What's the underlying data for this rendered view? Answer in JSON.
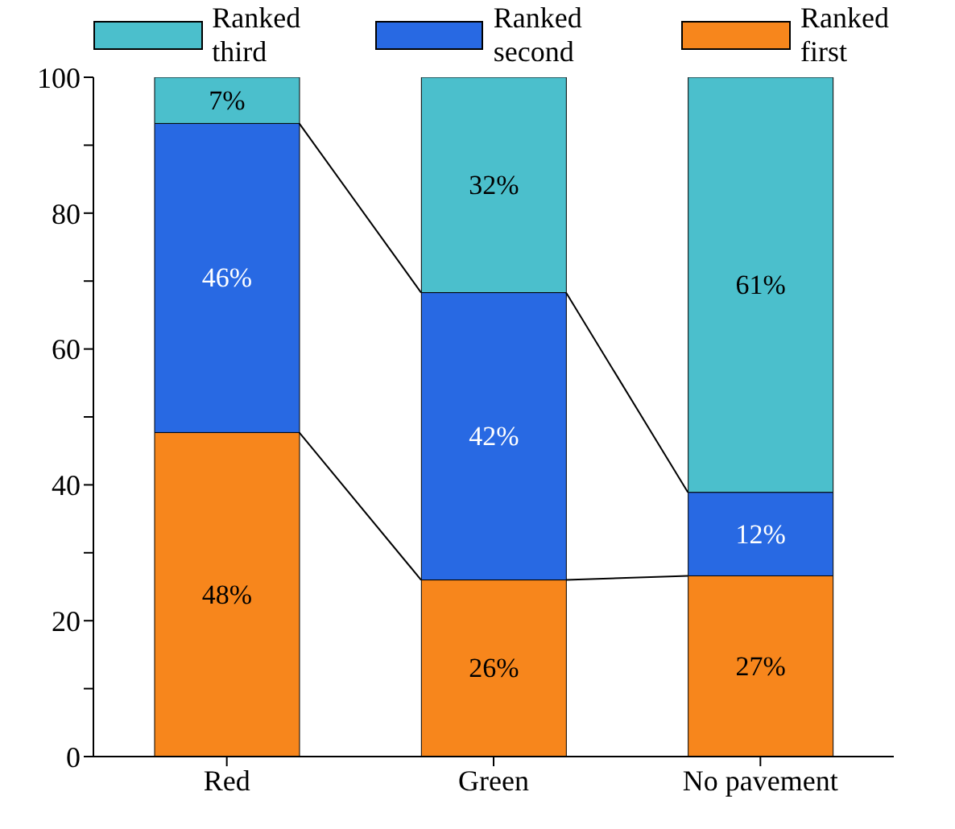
{
  "chart_data": {
    "type": "bar",
    "stacked": true,
    "categories": [
      "Red",
      "Green",
      "No pavement"
    ],
    "series": [
      {
        "name": "Ranked first",
        "color": "#f7861c",
        "values": [
          47.7,
          26,
          26.6
        ],
        "value_labels": [
          "48%",
          "26%",
          "27%"
        ]
      },
      {
        "name": "Ranked second",
        "color": "#2869e3",
        "values": [
          45.5,
          42.3,
          12.3
        ],
        "value_labels": [
          "46%",
          "42%",
          "12%"
        ]
      },
      {
        "name": "Ranked third",
        "color": "#4bbfcc",
        "values": [
          6.8,
          31.7,
          61.1
        ],
        "value_labels": [
          "7%",
          "32%",
          "61%"
        ]
      }
    ],
    "ylim": [
      0,
      100
    ],
    "yticks": [
      0,
      {
        "value": 10,
        "label": null
      },
      20,
      {
        "value": 30,
        "label": null
      },
      40,
      {
        "value": 50,
        "label": null
      },
      60,
      {
        "value": 70,
        "label": null
      },
      80,
      {
        "value": 90,
        "label": null
      },
      100
    ],
    "legend": "top",
    "grid": false
  }
}
